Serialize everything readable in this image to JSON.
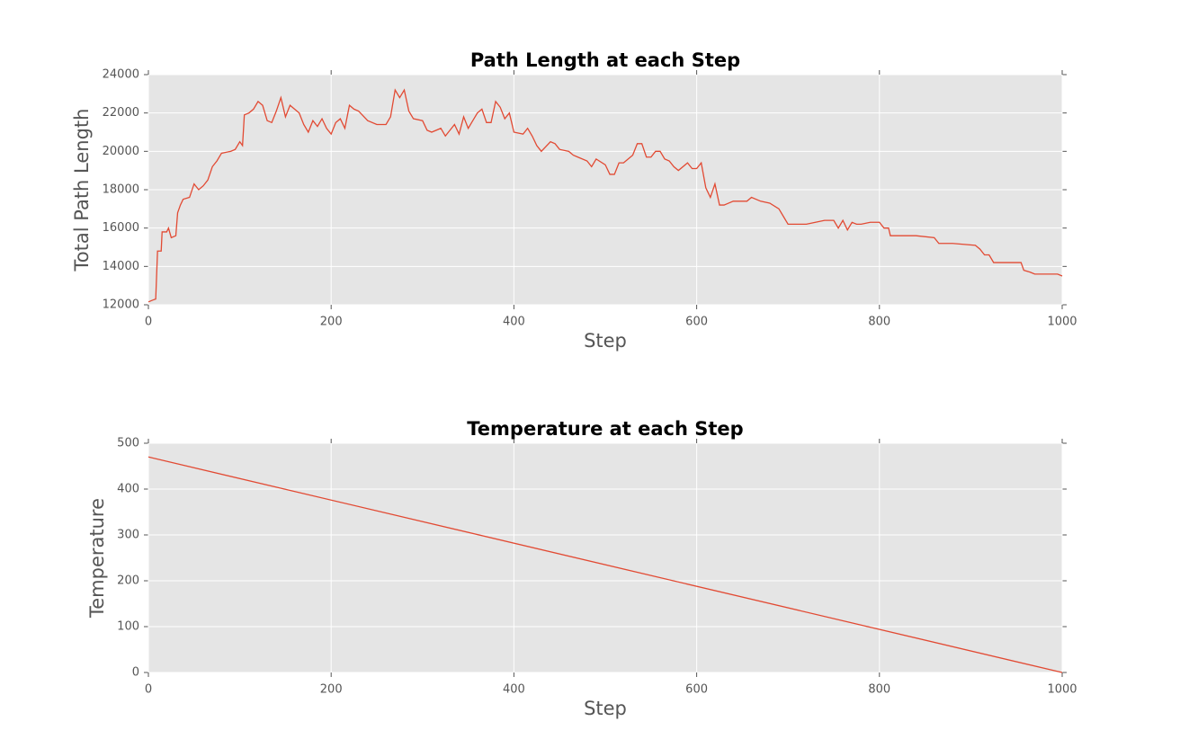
{
  "chart_data": [
    {
      "type": "line",
      "title": "Path Length at each Step",
      "xlabel": "Step",
      "ylabel": "Total Path Length",
      "x": [
        0,
        5,
        8,
        10,
        14,
        15,
        20,
        22,
        25,
        30,
        32,
        35,
        38,
        45,
        50,
        55,
        60,
        65,
        70,
        75,
        80,
        90,
        95,
        100,
        103,
        105,
        110,
        115,
        120,
        125,
        130,
        135,
        140,
        145,
        150,
        155,
        160,
        165,
        170,
        175,
        180,
        185,
        190,
        195,
        200,
        205,
        210,
        215,
        220,
        225,
        230,
        240,
        250,
        260,
        265,
        270,
        275,
        280,
        285,
        290,
        300,
        305,
        310,
        320,
        325,
        330,
        335,
        340,
        345,
        350,
        355,
        360,
        365,
        370,
        375,
        380,
        385,
        390,
        395,
        400,
        410,
        415,
        420,
        425,
        430,
        440,
        445,
        450,
        460,
        465,
        470,
        480,
        485,
        490,
        500,
        505,
        510,
        515,
        520,
        530,
        535,
        540,
        545,
        550,
        555,
        560,
        565,
        570,
        575,
        580,
        590,
        595,
        600,
        605,
        610,
        615,
        620,
        625,
        630,
        635,
        640,
        650,
        655,
        660,
        670,
        680,
        690,
        695,
        700,
        710,
        720,
        730,
        740,
        750,
        755,
        760,
        765,
        770,
        775,
        780,
        790,
        800,
        805,
        810,
        812,
        840,
        860,
        865,
        880,
        905,
        910,
        915,
        920,
        925,
        945,
        955,
        958,
        965,
        970,
        995,
        1000
      ],
      "values": [
        12150,
        12250,
        12300,
        14800,
        14800,
        15800,
        15800,
        16000,
        15500,
        15600,
        16800,
        17200,
        17500,
        17600,
        18300,
        18000,
        18200,
        18500,
        19200,
        19500,
        19900,
        20000,
        20100,
        20500,
        20300,
        21900,
        22000,
        22200,
        22600,
        22400,
        21600,
        21500,
        22100,
        22800,
        21800,
        22400,
        22200,
        22000,
        21400,
        21000,
        21600,
        21300,
        21700,
        21200,
        20900,
        21500,
        21700,
        21200,
        22400,
        22200,
        22100,
        21600,
        21400,
        21400,
        21800,
        23200,
        22800,
        23200,
        22100,
        21700,
        21600,
        21100,
        21000,
        21200,
        20800,
        21100,
        21400,
        20900,
        21800,
        21200,
        21600,
        22000,
        22200,
        21500,
        21500,
        22600,
        22300,
        21700,
        22000,
        21000,
        20900,
        21200,
        20800,
        20300,
        20000,
        20500,
        20400,
        20100,
        20000,
        19800,
        19700,
        19500,
        19200,
        19600,
        19300,
        18800,
        18800,
        19400,
        19400,
        19800,
        20400,
        20400,
        19700,
        19700,
        20000,
        20000,
        19600,
        19500,
        19200,
        19000,
        19400,
        19100,
        19100,
        19400,
        18100,
        17600,
        18300,
        17200,
        17200,
        17300,
        17400,
        17400,
        17400,
        17600,
        17400,
        17300,
        17000,
        16600,
        16200,
        16200,
        16200,
        16300,
        16400,
        16400,
        16000,
        16400,
        15900,
        16300,
        16200,
        16200,
        16300,
        16300,
        16000,
        16000,
        15600,
        15600,
        15500,
        15200,
        15200,
        15100,
        14900,
        14600,
        14600,
        14200,
        14200,
        14200,
        13800,
        13700,
        13600,
        13600,
        13500
      ],
      "color": "#e24a33",
      "xlim": [
        0,
        1000
      ],
      "xticks": [
        0,
        200,
        400,
        600,
        800,
        1000
      ],
      "ylim": [
        12000,
        24000
      ],
      "yticks": [
        12000,
        14000,
        16000,
        18000,
        20000,
        22000,
        24000
      ],
      "grid": true
    },
    {
      "type": "line",
      "title": "Temperature at each Step",
      "xlabel": "Step",
      "ylabel": "Temperature",
      "x": [
        0,
        1000
      ],
      "values": [
        470,
        0
      ],
      "color": "#e24a33",
      "xlim": [
        0,
        1000
      ],
      "xticks": [
        0,
        200,
        400,
        600,
        800,
        1000
      ],
      "ylim": [
        0,
        500
      ],
      "yticks": [
        0,
        100,
        200,
        300,
        400,
        500
      ],
      "grid": true
    }
  ]
}
